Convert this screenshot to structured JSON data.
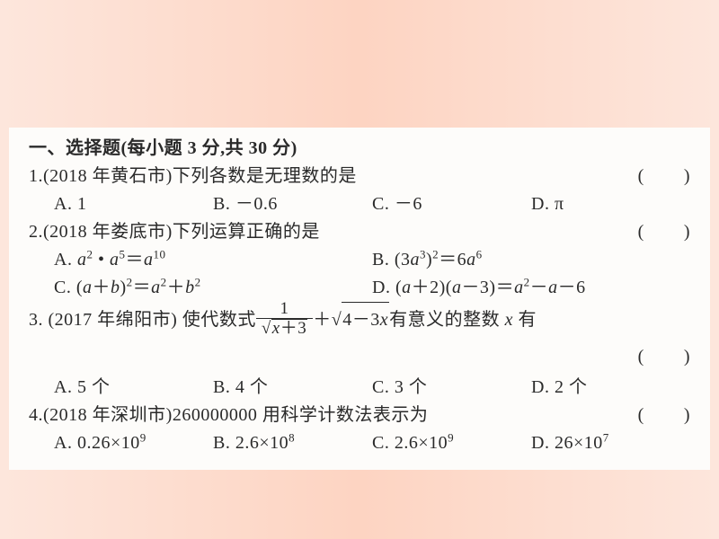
{
  "background_gradient": [
    "#fde6dc",
    "#fdd4c2",
    "#fde6dc"
  ],
  "paper_bg": "#fdfcfa",
  "text_color": "#2a2a2a",
  "heading": "一、选择题(每小题 3 分,共 30 分)",
  "questions": [
    {
      "num": "1.",
      "source": "(2018 年黄石市)",
      "stem": "下列各数是无理数的是",
      "options": {
        "A": "1",
        "B": "－0.6",
        "C": "－6",
        "D": "π"
      },
      "layout": "4col"
    },
    {
      "num": "2.",
      "source": "(2018 年娄底市)",
      "stem": "下列运算正确的是",
      "options": {
        "A": "a² · a⁵ = a¹⁰",
        "B": "(3a³)² = 6a⁶",
        "C": "(a+b)² = a² + b²",
        "D": "(a+2)(a−3) = a² − a − 6"
      },
      "layout": "2col"
    },
    {
      "num": "3.",
      "source": "(2017 年绵阳市)",
      "stem_pre": "使代数式",
      "stem_post": "有意义的整数 x 有",
      "frac_num": "1",
      "frac_den_rad": "x+3",
      "plus": "＋",
      "rad2": "4－3x",
      "options": {
        "A": "5 个",
        "B": "4 个",
        "C": "3 个",
        "D": "2 个"
      },
      "layout": "4col"
    },
    {
      "num": "4.",
      "source": "(2018 年深圳市)",
      "stem": "260000000 用科学计数法表示为",
      "options": {
        "A": "0.26×10⁹",
        "B": "2.6×10⁸",
        "C": "2.6×10⁹",
        "D": "26×10⁷"
      },
      "layout": "4col"
    }
  ]
}
